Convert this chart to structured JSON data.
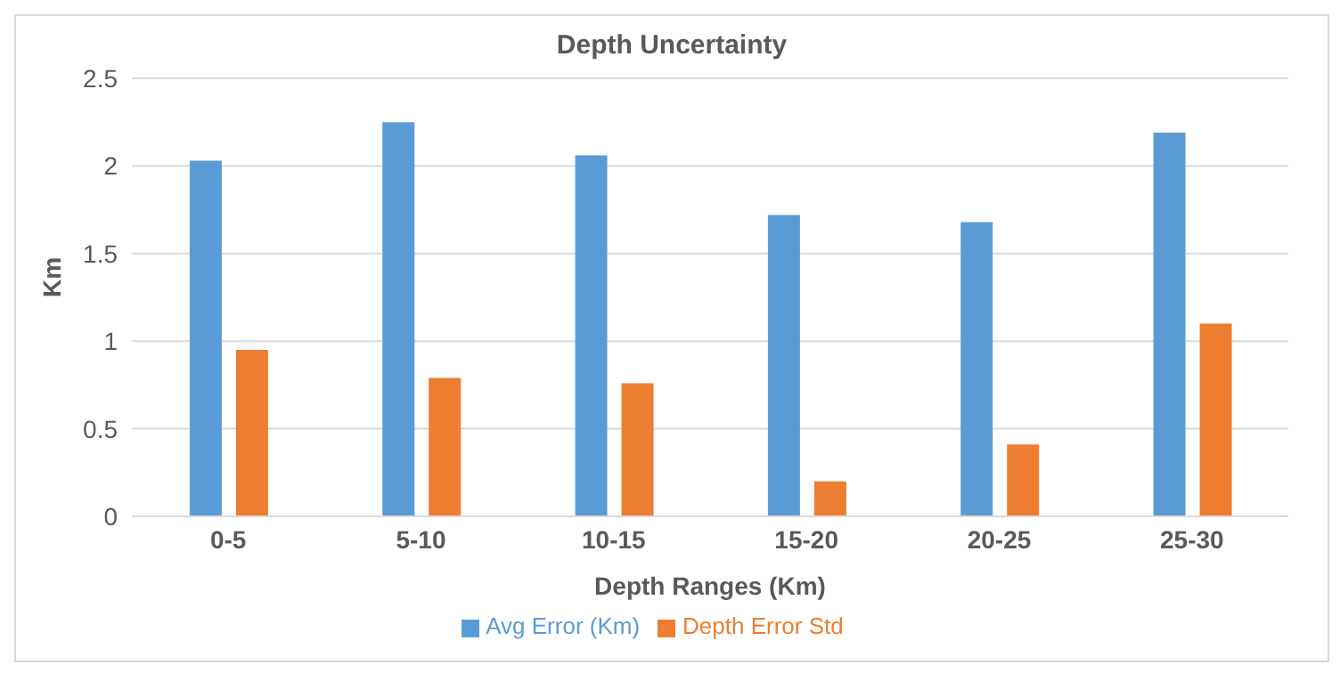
{
  "chart_data": {
    "type": "bar",
    "title": "Depth Uncertainty",
    "xlabel": "Depth Ranges (Km)",
    "ylabel": "Km",
    "categories": [
      "0-5",
      "5-10",
      "10-15",
      "15-20",
      "20-25",
      "25-30"
    ],
    "series": [
      {
        "name": "Avg Error (Km)",
        "color": "#5b9bd5",
        "values": [
          2.03,
          2.25,
          2.06,
          1.72,
          1.68,
          2.19
        ]
      },
      {
        "name": "Depth Error Std",
        "color": "#ed7d31",
        "values": [
          0.95,
          0.79,
          0.76,
          0.2,
          0.41,
          1.1
        ]
      }
    ],
    "ylim": [
      0,
      2.5
    ],
    "yticks": [
      0,
      0.5,
      1,
      1.5,
      2,
      2.5
    ],
    "grid": "y",
    "legend": "bottom"
  }
}
